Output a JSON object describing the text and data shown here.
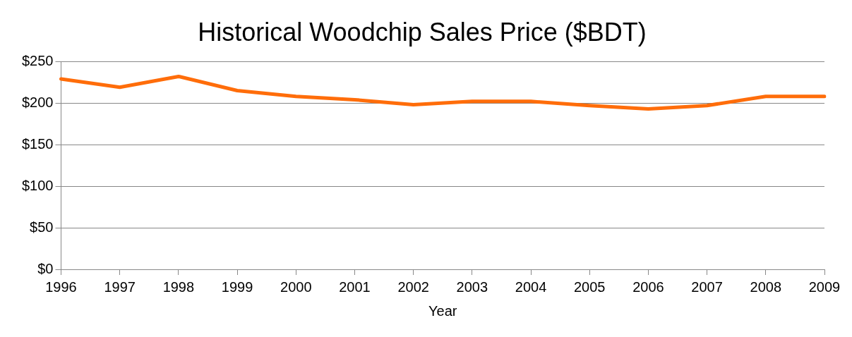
{
  "chart_data": {
    "type": "line",
    "title": "Historical Woodchip Sales Price ($BDT)",
    "xlabel": "Year",
    "categories": [
      "1996",
      "1997",
      "1998",
      "1999",
      "2000",
      "2001",
      "2002",
      "2003",
      "2004",
      "2005",
      "2006",
      "2007",
      "2008",
      "2009"
    ],
    "series": [
      {
        "color": "#ff6d0a",
        "values": [
          229,
          219,
          232,
          215,
          208,
          204,
          198,
          202,
          202,
          197,
          193,
          197,
          208,
          208
        ]
      }
    ],
    "ylim": [
      0,
      250
    ],
    "yticks": [
      {
        "value": 0,
        "label": "$0"
      },
      {
        "value": 50,
        "label": "$50"
      },
      {
        "value": 100,
        "label": "$100"
      },
      {
        "value": 150,
        "label": "$150"
      },
      {
        "value": 200,
        "label": "$200"
      },
      {
        "value": 250,
        "label": "$250"
      }
    ],
    "grid": "y",
    "legend": false,
    "marker": "none",
    "line_style": "solid"
  }
}
